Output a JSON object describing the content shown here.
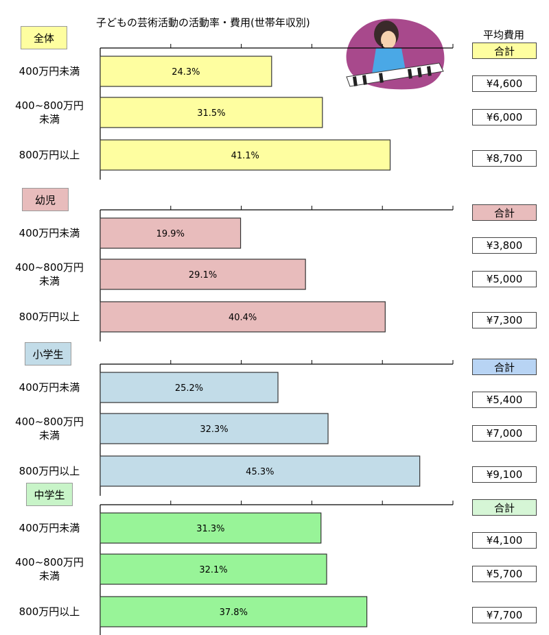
{
  "title": "子どもの芸術活動の活動率・費用(世帯年収別)",
  "cost_header": "平均費用",
  "sum_label": "合計",
  "row_labels": [
    "400万円未満",
    "400~800万円\n未満",
    "800万円以上"
  ],
  "chart_data": {
    "type": "bar",
    "orientation": "horizontal",
    "title": "子どもの芸術活動の活動率・費用(世帯年収別)",
    "categories": [
      "400万円未満",
      "400~800万円未満",
      "800万円以上"
    ],
    "xlim": [
      0,
      50
    ],
    "grid": false,
    "groups": [
      {
        "name": "全体",
        "color": "#fefea0",
        "tag_color": "#fefea0",
        "sum_color": "#fefea0",
        "values": [
          24.3,
          31.5,
          41.1
        ],
        "value_labels": [
          "24.3%",
          "31.5%",
          "41.1%"
        ],
        "costs": [
          "¥4,600",
          "¥6,000",
          "¥8,700"
        ]
      },
      {
        "name": "幼児",
        "color": "#e8bcbc",
        "tag_color": "#e8bcbc",
        "sum_color": "#e8bcbc",
        "values": [
          19.9,
          29.1,
          40.4
        ],
        "value_labels": [
          "19.9%",
          "29.1%",
          "40.4%"
        ],
        "costs": [
          "¥3,800",
          "¥5,000",
          "¥7,300"
        ]
      },
      {
        "name": "小学生",
        "color": "#c2dce8",
        "tag_color": "#c2dce8",
        "sum_color": "#b8d4f4",
        "values": [
          25.2,
          32.3,
          45.3
        ],
        "value_labels": [
          "25.2%",
          "32.3%",
          "45.3%"
        ],
        "costs": [
          "¥5,400",
          "¥7,000",
          "¥9,100"
        ]
      },
      {
        "name": "中学生",
        "color": "#98f498",
        "tag_color": "#c8f4c8",
        "sum_color": "#d6f6d6",
        "values": [
          31.3,
          32.1,
          37.8
        ],
        "value_labels": [
          "31.3%",
          "32.1%",
          "37.8%"
        ],
        "costs": [
          "¥4,100",
          "¥5,700",
          "¥7,700"
        ]
      }
    ]
  }
}
